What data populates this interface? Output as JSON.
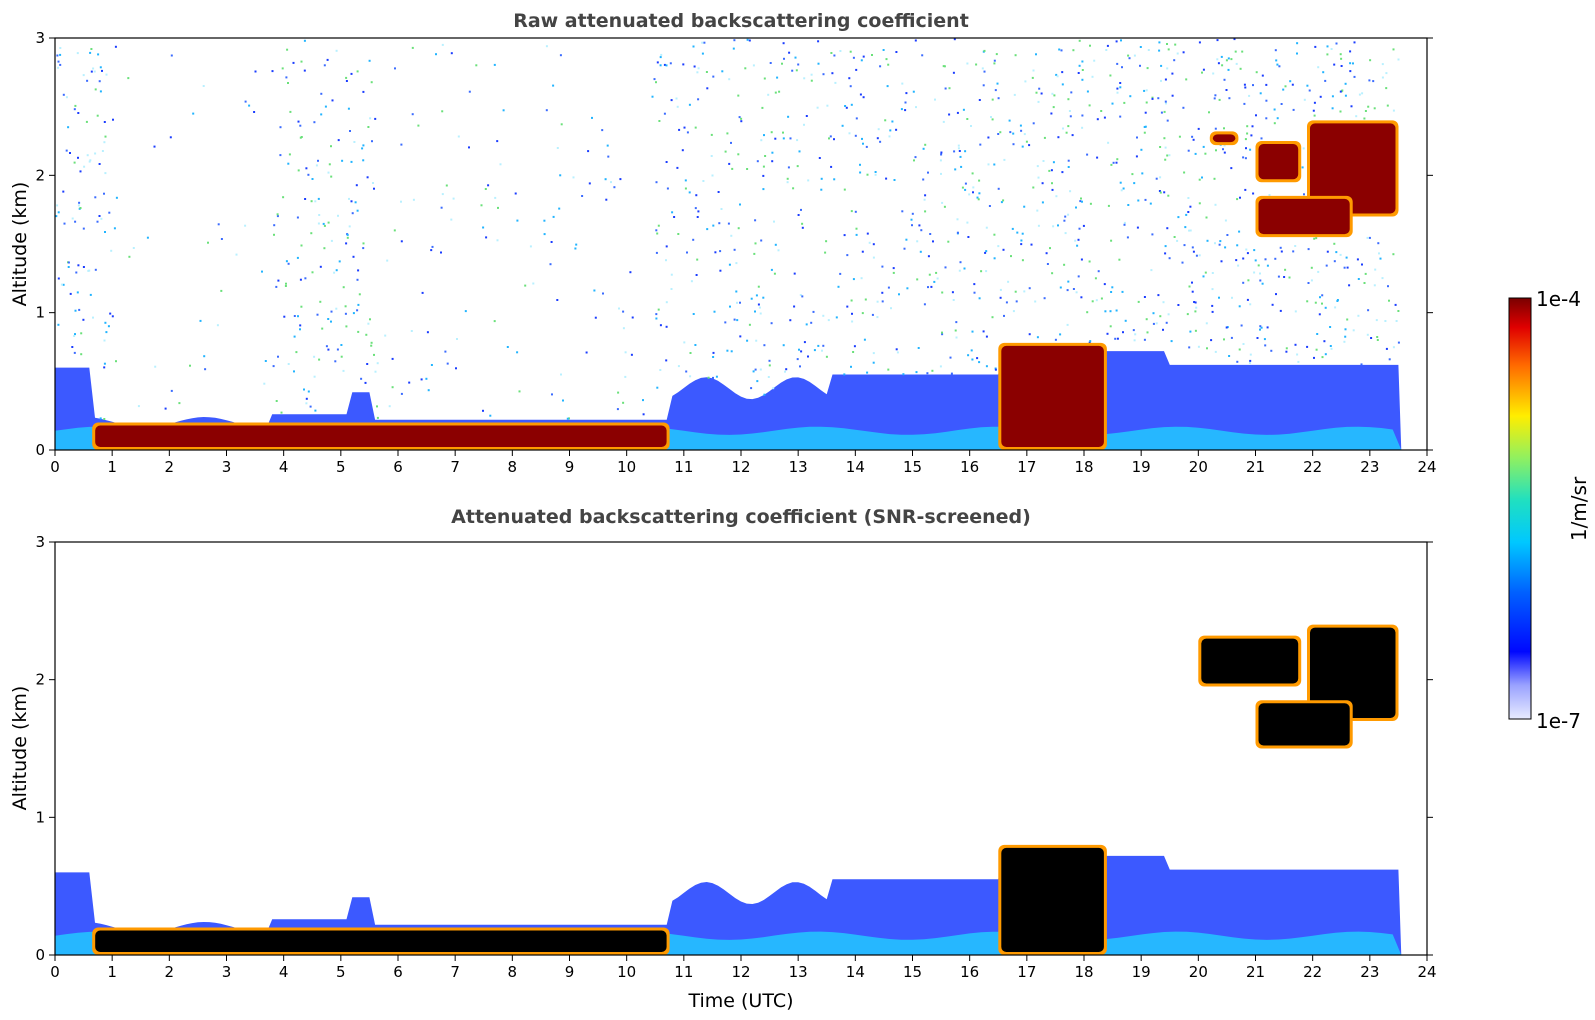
{
  "chart_data": [
    {
      "type": "heatmap",
      "title": "Raw attenuated backscattering coefficient",
      "xlabel": "",
      "ylabel": "Altitude (km)",
      "xlim": [
        0,
        24
      ],
      "ylim": [
        0,
        3
      ],
      "xticks": [
        0,
        1,
        2,
        3,
        4,
        5,
        6,
        7,
        8,
        9,
        10,
        11,
        12,
        13,
        14,
        15,
        16,
        17,
        18,
        19,
        20,
        21,
        22,
        23,
        24
      ],
      "yticks": [
        0,
        1,
        2,
        3
      ],
      "colormap": "jet",
      "color_scale": "log",
      "color_range": [
        "1e-7",
        "1e-4"
      ],
      "grid": false,
      "features": [
        {
          "t0": 0.65,
          "t1": 10.75,
          "alt0": 0.0,
          "alt1": 0.2,
          "level": "high"
        },
        {
          "t0": 16.5,
          "t1": 18.4,
          "alt0": 0.0,
          "alt1": 0.78,
          "level": "high"
        },
        {
          "t0": 20.2,
          "t1": 20.7,
          "alt0": 2.22,
          "alt1": 2.32,
          "level": "high"
        },
        {
          "t0": 21.0,
          "t1": 21.8,
          "alt0": 1.95,
          "alt1": 2.25,
          "level": "high"
        },
        {
          "t0": 21.9,
          "t1": 23.5,
          "alt0": 1.7,
          "alt1": 2.4,
          "level": "high"
        },
        {
          "t0": 21.0,
          "t1": 22.7,
          "alt0": 1.55,
          "alt1": 1.85,
          "level": "high"
        }
      ]
    },
    {
      "type": "heatmap",
      "title": "Attenuated backscattering coefficient (SNR-screened)",
      "xlabel": "Time (UTC)",
      "ylabel": "Altitude (km)",
      "xlim": [
        0,
        24
      ],
      "ylim": [
        0,
        3
      ],
      "xticks": [
        0,
        1,
        2,
        3,
        4,
        5,
        6,
        7,
        8,
        9,
        10,
        11,
        12,
        13,
        14,
        15,
        16,
        17,
        18,
        19,
        20,
        21,
        22,
        23,
        24
      ],
      "yticks": [
        0,
        1,
        2,
        3
      ],
      "colormap": "jet",
      "color_scale": "log",
      "color_range": [
        "1e-7",
        "1e-4"
      ],
      "grid": false,
      "features": [
        {
          "t0": 0.65,
          "t1": 10.75,
          "alt0": 0.0,
          "alt1": 0.2,
          "level": "saturated"
        },
        {
          "t0": 16.5,
          "t1": 18.4,
          "alt0": 0.0,
          "alt1": 0.8,
          "level": "saturated"
        },
        {
          "t0": 20.0,
          "t1": 21.8,
          "alt0": 1.95,
          "alt1": 2.32,
          "level": "saturated"
        },
        {
          "t0": 21.9,
          "t1": 23.5,
          "alt0": 1.7,
          "alt1": 2.4,
          "level": "saturated"
        },
        {
          "t0": 21.0,
          "t1": 22.7,
          "alt0": 1.5,
          "alt1": 1.85,
          "level": "saturated"
        }
      ]
    }
  ],
  "colorbar": {
    "max_label": "1e-4",
    "min_label": "1e-7",
    "label": "1/m/sr",
    "colormap": "jet"
  }
}
